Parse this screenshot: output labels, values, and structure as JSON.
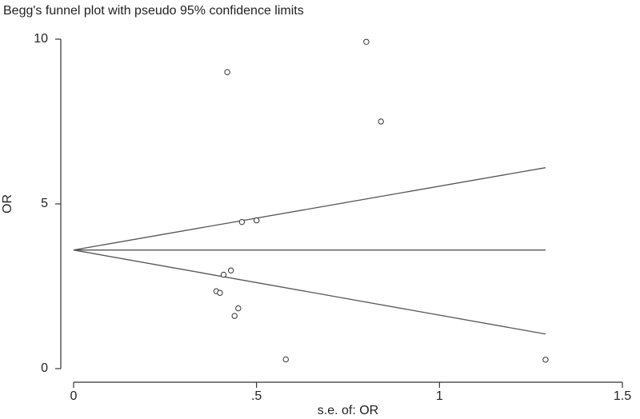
{
  "chart_data": {
    "type": "scatter",
    "title": "Begg's funnel plot with pseudo 95% confidence limits",
    "xlabel": "s.e. of: OR",
    "ylabel": "OR",
    "xlim": [
      0,
      1.5
    ],
    "ylim": [
      0,
      10
    ],
    "x_ticks": [
      {
        "value": 0,
        "label": "0"
      },
      {
        "value": 0.5,
        "label": ".5"
      },
      {
        "value": 1,
        "label": "1"
      },
      {
        "value": 1.5,
        "label": "1.5"
      }
    ],
    "y_ticks": [
      {
        "value": 0,
        "label": "0"
      },
      {
        "value": 5,
        "label": "5"
      },
      {
        "value": 10,
        "label": "10"
      }
    ],
    "grid": false,
    "points": [
      {
        "x": 0.42,
        "y": 9.0
      },
      {
        "x": 0.8,
        "y": 9.92
      },
      {
        "x": 0.84,
        "y": 7.5
      },
      {
        "x": 0.46,
        "y": 4.45
      },
      {
        "x": 0.5,
        "y": 4.5
      },
      {
        "x": 0.43,
        "y": 2.98
      },
      {
        "x": 0.41,
        "y": 2.85
      },
      {
        "x": 0.39,
        "y": 2.35
      },
      {
        "x": 0.4,
        "y": 2.3
      },
      {
        "x": 0.45,
        "y": 1.83
      },
      {
        "x": 0.44,
        "y": 1.6
      },
      {
        "x": 0.58,
        "y": 0.28
      },
      {
        "x": 1.29,
        "y": 0.27
      }
    ],
    "lines": [
      {
        "name": "pooled-estimate-line",
        "points": [
          [
            0,
            3.6
          ],
          [
            1.29,
            3.6
          ]
        ]
      },
      {
        "name": "upper-confidence-limit-line",
        "points": [
          [
            0,
            3.6
          ],
          [
            1.29,
            6.1
          ]
        ]
      },
      {
        "name": "lower-confidence-limit-line",
        "points": [
          [
            0,
            3.6
          ],
          [
            1.29,
            1.05
          ]
        ]
      }
    ],
    "colors": {
      "axis": "#333333",
      "line": "#555555",
      "marker": "#333333"
    }
  }
}
